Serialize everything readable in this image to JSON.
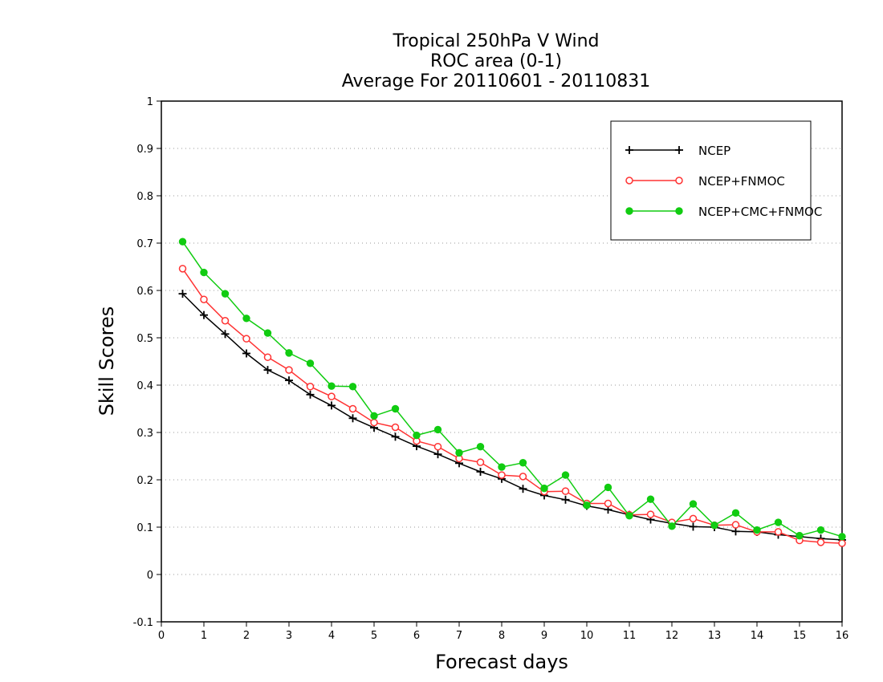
{
  "chart_data": {
    "type": "line",
    "title_lines": [
      "Tropical 250hPa V Wind",
      "ROC area (0-1)",
      "Average For 20110601 - 20110831"
    ],
    "xlabel": "Forecast days",
    "ylabel": "Skill Scores",
    "xlim": [
      0,
      16
    ],
    "ylim": [
      -0.1,
      1
    ],
    "xticks": [
      "0",
      "1",
      "2",
      "3",
      "4",
      "5",
      "6",
      "7",
      "8",
      "9",
      "10",
      "11",
      "12",
      "13",
      "14",
      "15",
      "16"
    ],
    "yticks": [
      "-0.1",
      "0",
      "0.1",
      "0.2",
      "0.3",
      "0.4",
      "0.5",
      "0.6",
      "0.7",
      "0.8",
      "0.9",
      "1"
    ],
    "grid": true,
    "legend_position": "top-right",
    "x": [
      0.5,
      1,
      1.5,
      2,
      2.5,
      3,
      3.5,
      4,
      4.5,
      5,
      5.5,
      6,
      6.5,
      7,
      7.5,
      8,
      8.5,
      9,
      9.5,
      10,
      10.5,
      11,
      11.5,
      12,
      12.5,
      13,
      13.5,
      14,
      14.5,
      15,
      15.5,
      16
    ],
    "series": [
      {
        "name": "NCEP",
        "color": "#000000",
        "marker": "plus",
        "values": [
          0.593,
          0.548,
          0.508,
          0.467,
          0.432,
          0.41,
          0.38,
          0.357,
          0.33,
          0.31,
          0.291,
          0.271,
          0.254,
          0.235,
          0.217,
          0.202,
          0.181,
          0.167,
          0.158,
          0.145,
          0.137,
          0.126,
          0.116,
          0.108,
          0.101,
          0.1,
          0.091,
          0.09,
          0.084,
          0.08,
          0.076,
          0.073
        ]
      },
      {
        "name": "NCEP+FNMOC",
        "color": "#ff3333",
        "marker": "open-circle",
        "values": [
          0.646,
          0.581,
          0.536,
          0.498,
          0.459,
          0.432,
          0.397,
          0.376,
          0.35,
          0.321,
          0.311,
          0.282,
          0.27,
          0.245,
          0.237,
          0.21,
          0.207,
          0.175,
          0.176,
          0.15,
          0.15,
          0.126,
          0.127,
          0.11,
          0.118,
          0.104,
          0.105,
          0.09,
          0.09,
          0.072,
          0.068,
          0.066
        ]
      },
      {
        "name": "NCEP+CMC+FNMOC",
        "color": "#11cc11",
        "marker": "filled-circle",
        "values": [
          0.703,
          0.638,
          0.593,
          0.541,
          0.51,
          0.468,
          0.446,
          0.398,
          0.397,
          0.335,
          0.35,
          0.294,
          0.306,
          0.257,
          0.27,
          0.227,
          0.236,
          0.182,
          0.21,
          0.146,
          0.184,
          0.124,
          0.159,
          0.102,
          0.149,
          0.104,
          0.13,
          0.094,
          0.11,
          0.082,
          0.094,
          0.08
        ]
      }
    ]
  }
}
